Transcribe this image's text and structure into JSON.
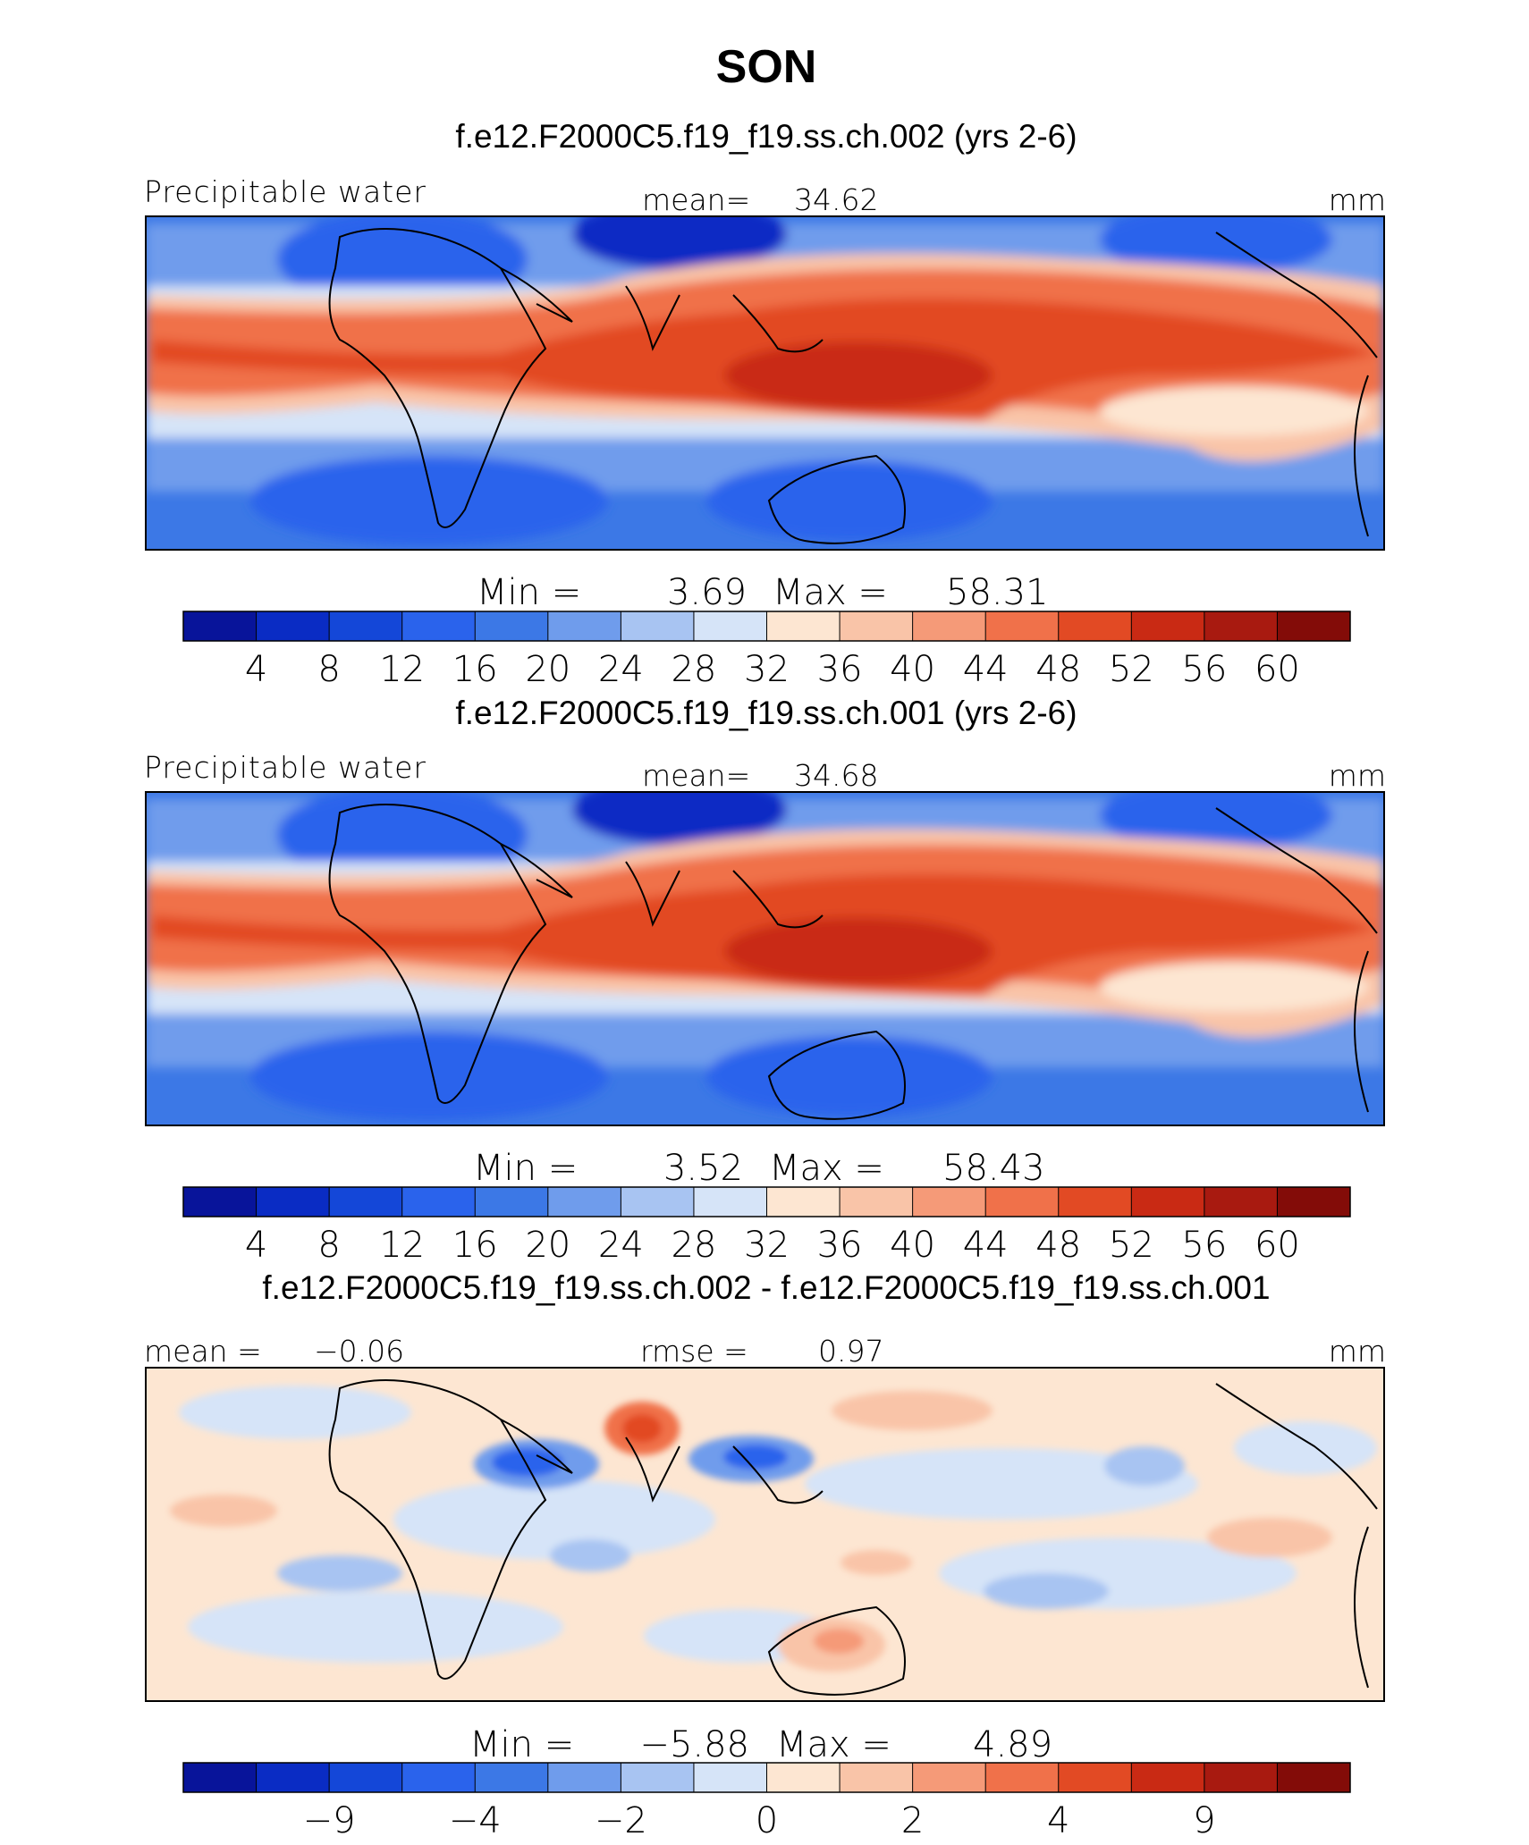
{
  "page": {
    "title": "SON"
  },
  "palette": {
    "precip": [
      "#08149a",
      "#0a2cc4",
      "#1447d8",
      "#2a63ec",
      "#3c78e6",
      "#6f9cec",
      "#a8c4f2",
      "#d6e4f8",
      "#fde6d2",
      "#f9c4a8",
      "#f59a78",
      "#f0714a",
      "#e24a24",
      "#c92a14",
      "#a81a10",
      "#830c08"
    ],
    "diff": [
      "#08149a",
      "#0a2cc4",
      "#1447d8",
      "#2a63ec",
      "#3c78e6",
      "#6f9cec",
      "#a8c4f2",
      "#d6e4f8",
      "#fde6d2",
      "#f9c4a8",
      "#f59a78",
      "#f0714a",
      "#e24a24",
      "#c92a14",
      "#a81a10",
      "#830c08"
    ]
  },
  "chart_data": [
    {
      "type": "heatmap",
      "title": "f.e12.F2000C5.f19_f19.ss.ch.002 (yrs 2-6)",
      "variable": "Precipitable water",
      "units": "mm",
      "mean_label": "mean=",
      "mean_value": "34.62",
      "min_label": "Min  =",
      "min_value": "3.69",
      "max_label": "Max  =",
      "max_value": "58.31",
      "colorbar_ticks": [
        "4",
        "8",
        "12",
        "16",
        "20",
        "24",
        "28",
        "32",
        "36",
        "40",
        "44",
        "48",
        "52",
        "56",
        "60"
      ]
    },
    {
      "type": "heatmap",
      "title": "f.e12.F2000C5.f19_f19.ss.ch.001 (yrs 2-6)",
      "variable": "Precipitable water",
      "units": "mm",
      "mean_label": "mean=",
      "mean_value": "34.68",
      "min_label": "Min  =",
      "min_value": "3.52",
      "max_label": "Max  =",
      "max_value": "58.43",
      "colorbar_ticks": [
        "4",
        "8",
        "12",
        "16",
        "20",
        "24",
        "28",
        "32",
        "36",
        "40",
        "44",
        "48",
        "52",
        "56",
        "60"
      ]
    },
    {
      "type": "heatmap",
      "title": "f.e12.F2000C5.f19_f19.ss.ch.002 - f.e12.F2000C5.f19_f19.ss.ch.001",
      "units": "mm",
      "mean_label": "mean =",
      "mean_value": "−0.06",
      "rmse_label": "rmse =",
      "rmse_value": "0.97",
      "min_label": "Min  =",
      "min_value": "−5.88",
      "max_label": "Max  =",
      "max_value": "4.89",
      "colorbar_ticks": [
        "−9",
        "−4",
        "−2",
        "0",
        "2",
        "4",
        "9"
      ]
    }
  ]
}
